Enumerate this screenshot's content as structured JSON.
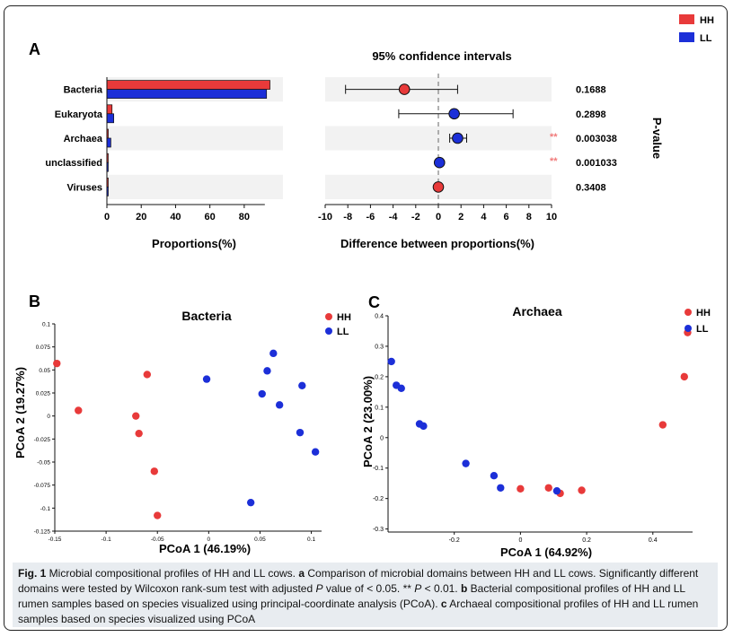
{
  "legend": {
    "items": [
      {
        "label": "HH",
        "color": "#e83a3a"
      },
      {
        "label": "LL",
        "color": "#1c2fd8"
      }
    ]
  },
  "panel_labels": {
    "a": "A",
    "b": "B",
    "c": "C"
  },
  "chart_data": [
    {
      "type": "bar",
      "panel": "A-left",
      "categories": [
        "Bacteria",
        "Eukaryota",
        "Archaea",
        "unclassified",
        "Viruses"
      ],
      "series": [
        {
          "name": "HH",
          "values": [
            95,
            3,
            0.8,
            0.2,
            0.1
          ]
        },
        {
          "name": "LL",
          "values": [
            93,
            4,
            2.3,
            0.3,
            0.1
          ]
        }
      ],
      "xlabel": "Proportions(%)",
      "xlim": [
        0,
        100
      ],
      "xticks": [
        "0",
        "20",
        "40",
        "60",
        "80"
      ]
    },
    {
      "type": "scatter",
      "panel": "A-right",
      "title": "95% confidence intervals",
      "xlabel": "Difference between proportions(%)",
      "xlim": [
        -10,
        10
      ],
      "xticks": [
        "-10",
        "-8",
        "-6",
        "-4",
        "-2",
        "0",
        "2",
        "4",
        "6",
        "8",
        "10"
      ],
      "side_label": "P-value",
      "points": [
        {
          "category": "Bacteria",
          "diff": -3,
          "ci": [
            -8.2,
            1.7
          ],
          "group": "HH",
          "p": "0.1688",
          "sig": ""
        },
        {
          "category": "Eukaryota",
          "diff": 1.4,
          "ci": [
            -3.5,
            6.6
          ],
          "group": "LL",
          "p": "0.2898",
          "sig": ""
        },
        {
          "category": "Archaea",
          "diff": 1.7,
          "ci": [
            1.0,
            2.5
          ],
          "group": "LL",
          "p": "0.003038",
          "sig": "**"
        },
        {
          "category": "unclassified",
          "diff": 0.1,
          "ci": [
            0.0,
            0.2
          ],
          "group": "LL",
          "p": "0.001033",
          "sig": "**"
        },
        {
          "category": "Viruses",
          "diff": 0,
          "ci": [
            -0.1,
            0.1
          ],
          "group": "HH",
          "p": "0.3408",
          "sig": ""
        }
      ]
    },
    {
      "type": "scatter",
      "panel": "B",
      "title": "Bacteria",
      "xlabel": "PCoA 1 (46.19%)",
      "ylabel": "PCoA 2 (19.27%)",
      "xlim": [
        -0.15,
        0.11
      ],
      "ylim": [
        -0.125,
        0.1
      ],
      "xticks": [
        "-0.15",
        "-0.1",
        "-0.05",
        "0",
        "0.05",
        "0.1"
      ],
      "yticks": [
        "-0.125",
        "-0.1",
        "-0.075",
        "-0.05",
        "-0.025",
        "0",
        "0.025",
        "0.05",
        "0.075",
        "0.1"
      ],
      "series": [
        {
          "name": "HH",
          "points": [
            [
              -0.148,
              0.057
            ],
            [
              -0.127,
              0.006
            ],
            [
              -0.071,
              0.0
            ],
            [
              -0.06,
              0.045
            ],
            [
              -0.068,
              -0.019
            ],
            [
              -0.053,
              -0.06
            ],
            [
              -0.05,
              -0.108
            ]
          ]
        },
        {
          "name": "LL",
          "points": [
            [
              -0.002,
              0.04
            ],
            [
              0.052,
              0.024
            ],
            [
              0.057,
              0.049
            ],
            [
              0.063,
              0.068
            ],
            [
              0.069,
              0.012
            ],
            [
              0.091,
              0.033
            ],
            [
              0.089,
              -0.018
            ],
            [
              0.104,
              -0.039
            ],
            [
              0.041,
              -0.094
            ]
          ]
        }
      ]
    },
    {
      "type": "scatter",
      "panel": "C",
      "title": "Archaea",
      "xlabel": "PCoA 1 (64.92%)",
      "ylabel": "PCoA 2 (23.00%)",
      "xlim": [
        -0.4,
        0.52
      ],
      "ylim": [
        -0.31,
        0.4
      ],
      "xticks": [
        "-0.2",
        "0",
        "0.2",
        "0.4"
      ],
      "yticks": [
        "-0.3",
        "-0.2",
        "-0.1",
        "0",
        "0.1",
        "0.2",
        "0.3",
        "0.4"
      ],
      "series": [
        {
          "name": "HH",
          "points": [
            [
              0.0,
              -0.168
            ],
            [
              0.085,
              -0.165
            ],
            [
              0.12,
              -0.183
            ],
            [
              0.185,
              -0.173
            ],
            [
              0.43,
              0.042
            ],
            [
              0.495,
              0.2
            ],
            [
              0.505,
              0.345
            ]
          ]
        },
        {
          "name": "LL",
          "points": [
            [
              -0.39,
              0.25
            ],
            [
              -0.375,
              0.172
            ],
            [
              -0.36,
              0.162
            ],
            [
              -0.305,
              0.045
            ],
            [
              -0.293,
              0.038
            ],
            [
              -0.165,
              -0.085
            ],
            [
              -0.08,
              -0.125
            ],
            [
              -0.06,
              -0.165
            ],
            [
              0.11,
              -0.175
            ]
          ]
        }
      ]
    }
  ],
  "caption": {
    "lead": "Fig. 1",
    "seg1": " Microbial compositional profiles of HH and LL cows. ",
    "a": "a",
    "seg2": " Comparison of microbial domains between HH and LL cows. Significantly different domains were tested by Wilcoxon rank-sum test with adjusted ",
    "p1": "P",
    "seg3": " value of < 0.05. ** ",
    "p2": "P",
    "seg4": " < 0.01. ",
    "b": "b",
    "seg5": " Bacterial compositional profiles of HH and LL rumen samples based on species visualized using principal-coordinate analysis (PCoA). ",
    "c": "c",
    "seg6": " Archaeal compositional profiles of HH and LL rumen samples based on species visualized using PCoA"
  }
}
